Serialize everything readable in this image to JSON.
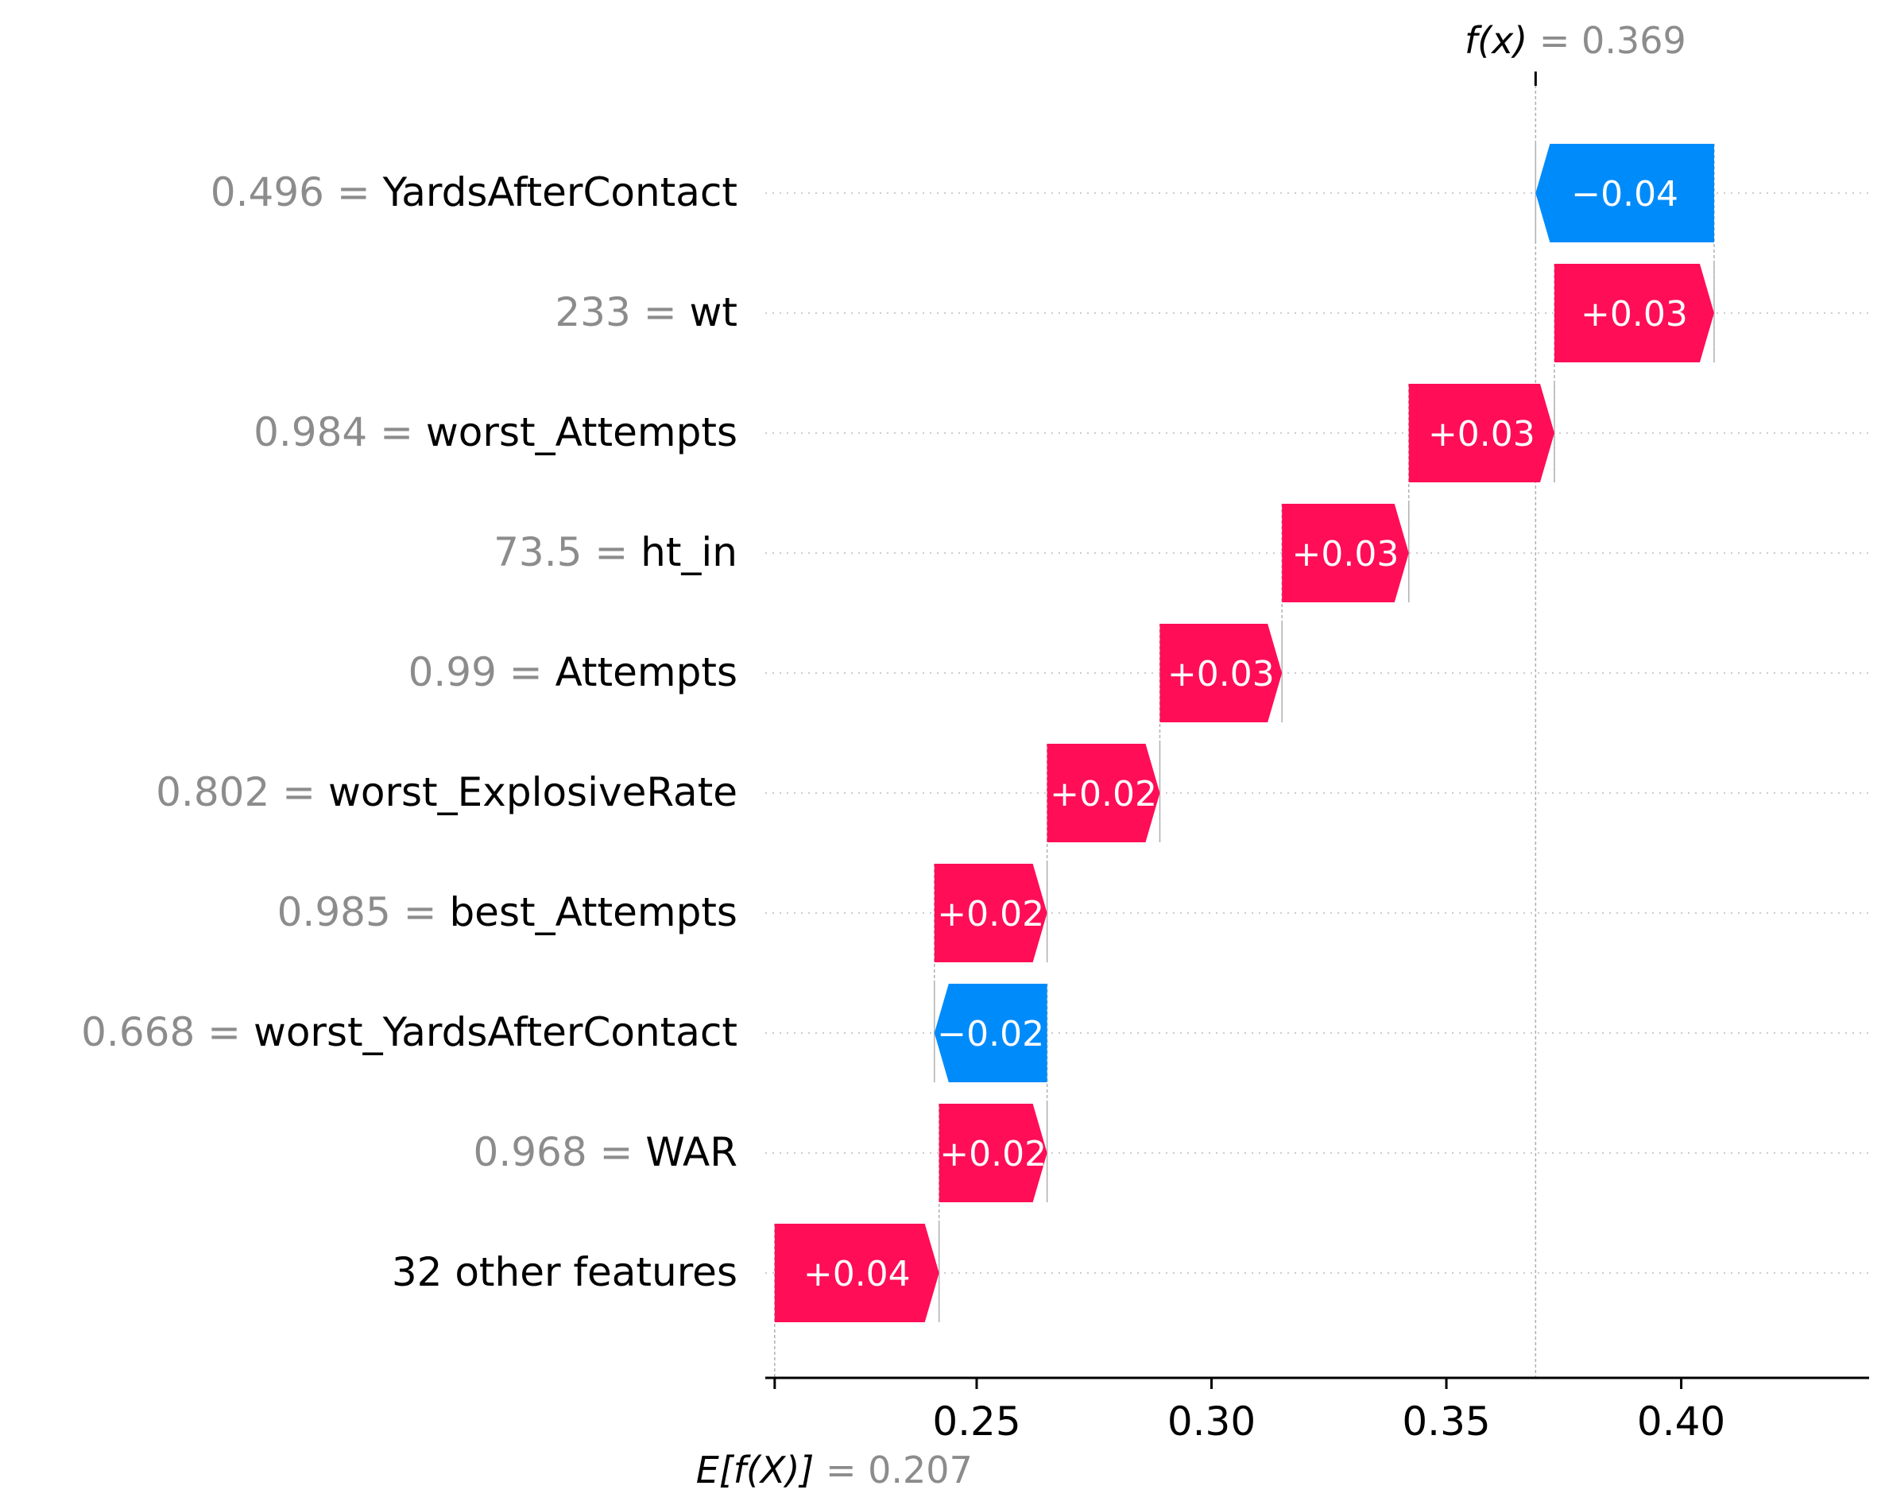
{
  "chart_data": {
    "type": "waterfall",
    "base_value": 0.207,
    "base_label_prefix": "E[f(X)]",
    "base_label_value": "0.207",
    "output_value": 0.369,
    "output_label_prefix": "f(x)",
    "output_label_value": "0.369",
    "xlim": [
      0.205,
      0.44
    ],
    "xticks": [
      0.25,
      0.3,
      0.35,
      0.4
    ],
    "xtick_labels": [
      "0.25",
      "0.30",
      "0.35",
      "0.40"
    ],
    "positive_color": "#ff0d57",
    "negative_color": "#008bfb",
    "features": [
      {
        "value": "0.496",
        "name": "YardsAfterContact",
        "contribution": -0.038,
        "label": "−0.04"
      },
      {
        "value": "233",
        "name": "wt",
        "contribution": 0.034,
        "label": "+0.03"
      },
      {
        "value": "0.984",
        "name": "worst_Attempts",
        "contribution": 0.031,
        "label": "+0.03"
      },
      {
        "value": "73.5",
        "name": "ht_in",
        "contribution": 0.027,
        "label": "+0.03"
      },
      {
        "value": "0.99",
        "name": "Attempts",
        "contribution": 0.026,
        "label": "+0.03"
      },
      {
        "value": "0.802",
        "name": "worst_ExplosiveRate",
        "contribution": 0.024,
        "label": "+0.02"
      },
      {
        "value": "0.985",
        "name": "best_Attempts",
        "contribution": 0.024,
        "label": "+0.02"
      },
      {
        "value": "0.668",
        "name": "worst_YardsAfterContact",
        "contribution": -0.024,
        "label": "−0.02"
      },
      {
        "value": "0.968",
        "name": "WAR",
        "contribution": 0.023,
        "label": "+0.02"
      },
      {
        "value": "",
        "name": "32 other features",
        "contribution": 0.035,
        "label": "+0.04"
      }
    ]
  }
}
